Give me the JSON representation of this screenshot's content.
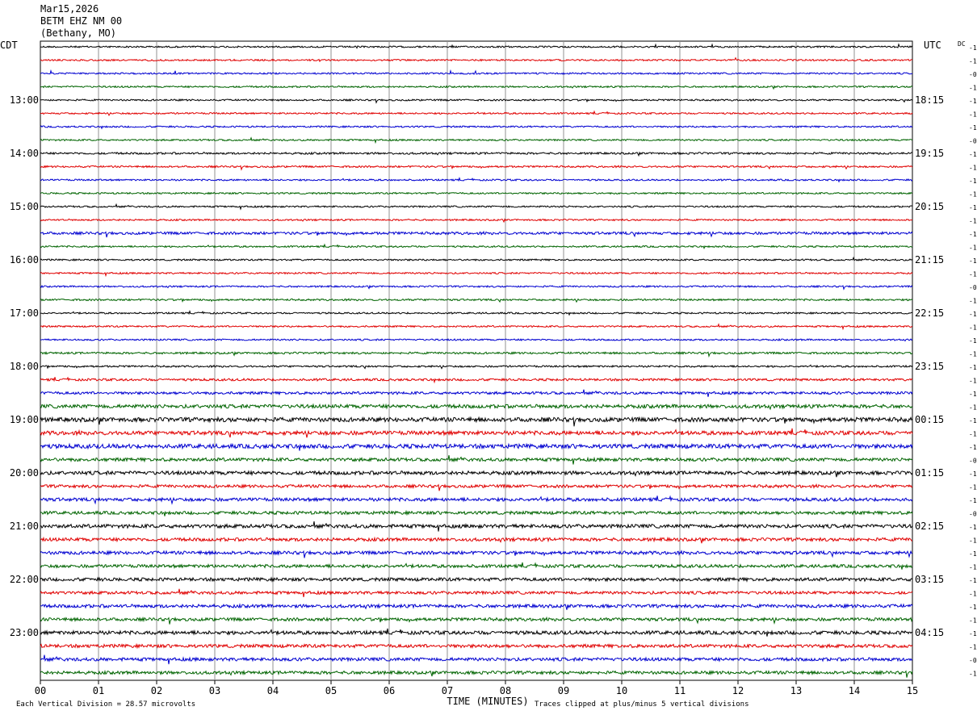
{
  "header": {
    "date": "Mar15,2026",
    "station": "BETM EHZ NM 00",
    "location": "(Bethany, MO)"
  },
  "chart_data": {
    "type": "line",
    "title": "Mar15,2026 BETM EHZ NM 00 (Bethany, MO)",
    "left_timezone": "CDT",
    "right_timezone": "UTC",
    "xlabel": "TIME (MINUTES)",
    "x_ticks": [
      "00",
      "01",
      "02",
      "03",
      "04",
      "05",
      "06",
      "07",
      "08",
      "09",
      "10",
      "11",
      "12",
      "13",
      "14",
      "15"
    ],
    "xlim": [
      0,
      15
    ],
    "minutes_per_line": 15,
    "left_hour_labels": [
      "13:00",
      "14:00",
      "15:00",
      "16:00",
      "17:00",
      "18:00",
      "19:00",
      "20:00",
      "21:00",
      "22:00",
      "23:00"
    ],
    "right_hour_labels": [
      "18:15",
      "19:15",
      "20:15",
      "21:15",
      "22:15",
      "23:15",
      "00:15",
      "01:15",
      "02:15",
      "03:15",
      "04:15"
    ],
    "dc_header": "DC",
    "dc_offsets": [
      "-1",
      "-1",
      "-0",
      "-1",
      "-1",
      "-1",
      "-1",
      "-0",
      "-1",
      "-1",
      "-1",
      "-1",
      "-1",
      "-1",
      "-1",
      "-1",
      "-1",
      "-1",
      "-0",
      "-1",
      "-1",
      "-1",
      "-1",
      "-1",
      "-1",
      "-1",
      "-1",
      "-1",
      "-1",
      "-1",
      "-1",
      "-0",
      "-1",
      "-1",
      "-1",
      "-0",
      "-1",
      "-1",
      "-1",
      "-1",
      "-1",
      "-1",
      "-1",
      "-1",
      "-1",
      "-1",
      "-0",
      "-1"
    ],
    "trace_colors": [
      "#000000",
      "#e00000",
      "#0000d0",
      "#006400"
    ],
    "trace_noise": [
      1,
      1,
      1,
      1,
      1,
      1,
      1,
      1,
      1.2,
      1.1,
      1,
      1,
      1,
      1,
      1.6,
      1,
      1,
      1,
      1,
      1.1,
      1,
      1,
      1,
      1.2,
      1.1,
      1.4,
      1.6,
      2.2,
      2.6,
      2.4,
      2.6,
      2.0,
      2.2,
      1.8,
      2.0,
      1.9,
      2.2,
      2.0,
      2.0,
      1.9,
      2.0,
      1.8,
      2.0,
      1.9,
      2.2,
      2.0,
      2.0,
      1.9
    ],
    "grid": true,
    "footer_left": "Each Vertical Division =   28.57 microvolts",
    "footer_right": "Traces clipped at plus/minus 5 vertical divisions"
  }
}
